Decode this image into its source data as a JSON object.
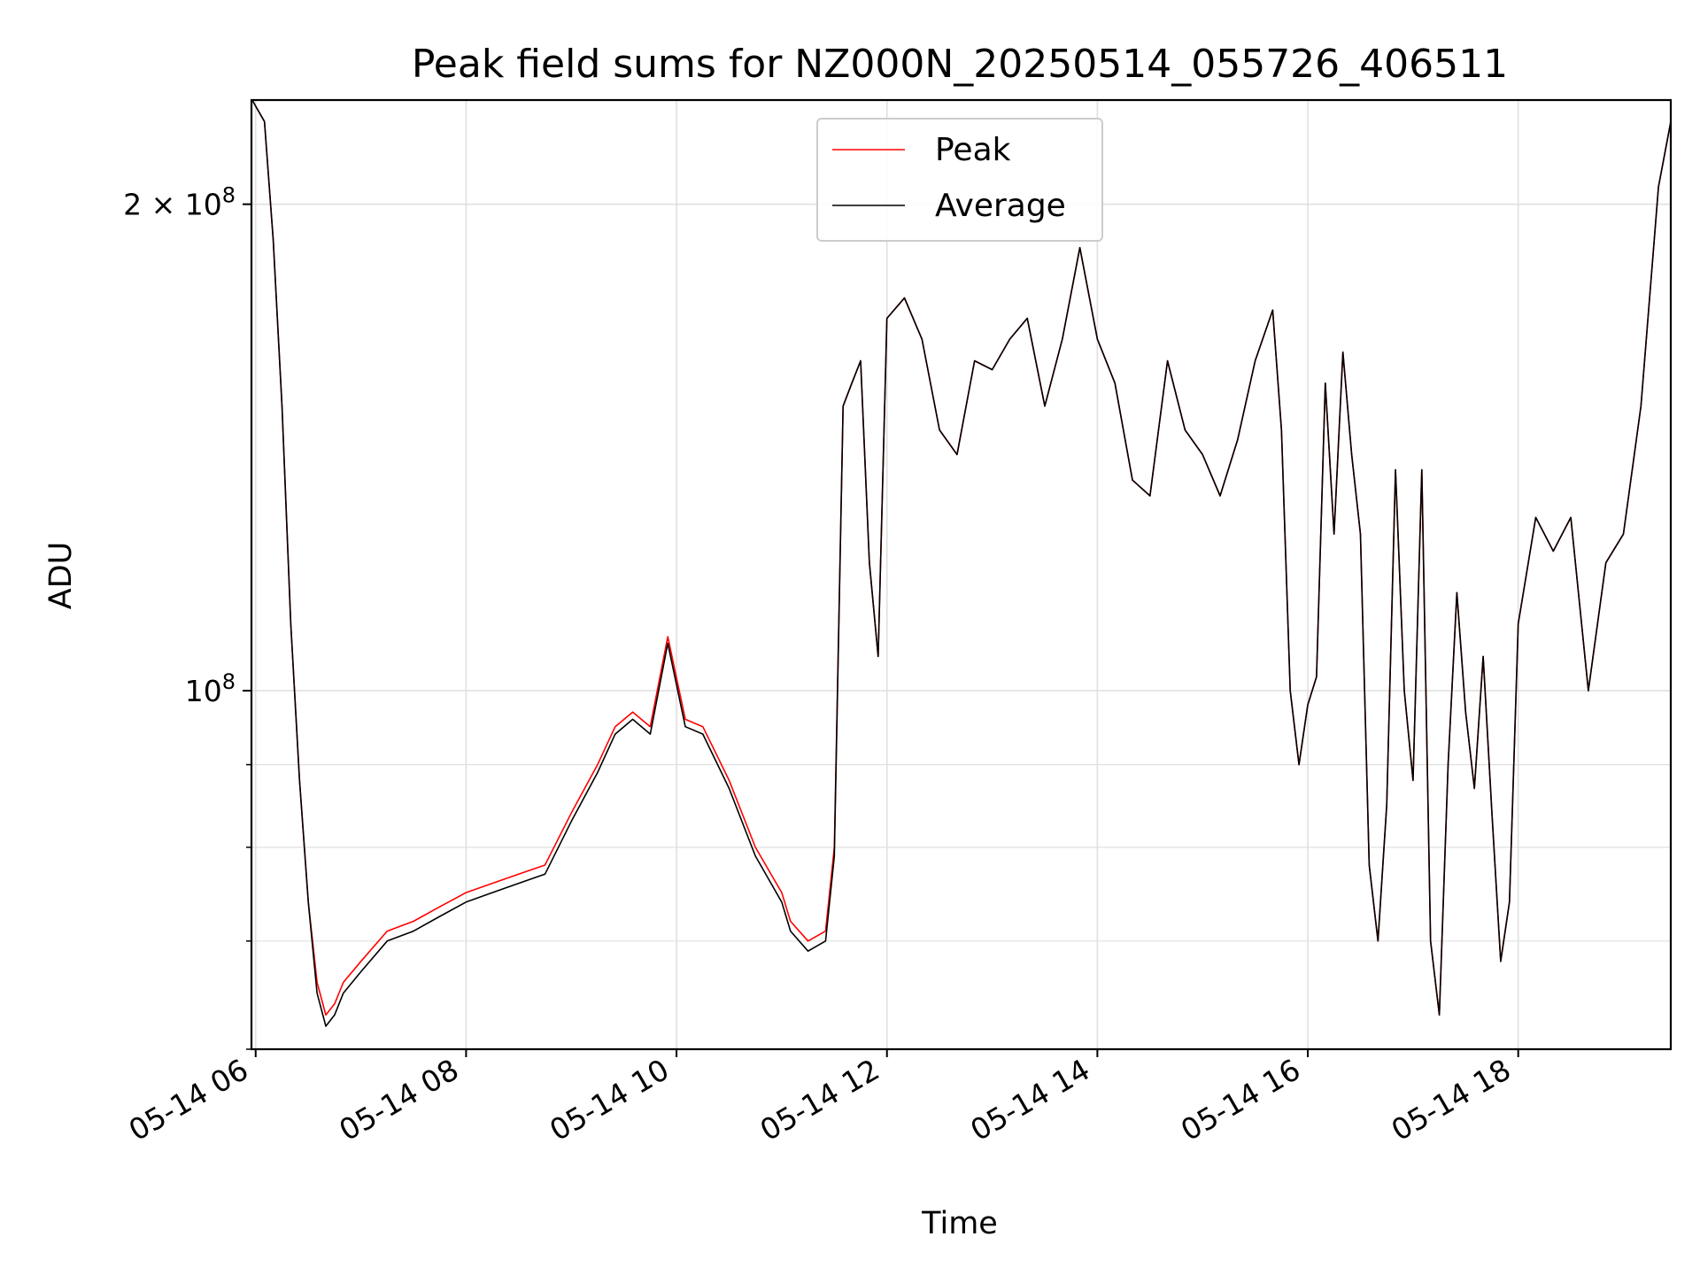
{
  "chart_data": {
    "type": "line",
    "title": "Peak field sums for NZ000N_20250514_055726_406511",
    "xlabel": "Time",
    "ylabel": "ADU",
    "yscale": "log",
    "xlim_hours": [
      5.96,
      19.45
    ],
    "ylim": [
      60000000,
      232000000
    ],
    "x_ticks": [
      "05-14 06",
      "05-14 08",
      "05-14 10",
      "05-14 12",
      "05-14 14",
      "05-14 16",
      "05-14 18"
    ],
    "y_tick_labels": [
      {
        "value": 200000000,
        "base": "2 × 10",
        "exp": "8"
      },
      {
        "value": 100000000,
        "base": "10",
        "exp": "8"
      }
    ],
    "grid": true,
    "legend_position": "upper center",
    "colors": {
      "peak": "#ff0000",
      "average": "#000000",
      "grid": "#e0e0e0"
    },
    "series": [
      {
        "name": "Peak",
        "x": [
          "05-14 05:58",
          "05-14 06:05",
          "05-14 06:10",
          "05-14 06:15",
          "05-14 06:20",
          "05-14 06:25",
          "05-14 06:30",
          "05-14 06:35",
          "05-14 06:40",
          "05-14 06:45",
          "05-14 06:50",
          "05-14 07:00",
          "05-14 07:15",
          "05-14 07:30",
          "05-14 07:45",
          "05-14 08:00",
          "05-14 08:15",
          "05-14 08:30",
          "05-14 08:45",
          "05-14 09:00",
          "05-14 09:15",
          "05-14 09:25",
          "05-14 09:35",
          "05-14 09:45",
          "05-14 09:55",
          "05-14 10:05",
          "05-14 10:15",
          "05-14 10:30",
          "05-14 10:45",
          "05-14 11:00",
          "05-14 11:05",
          "05-14 11:15",
          "05-14 11:25",
          "05-14 11:30",
          "05-14 11:35",
          "05-14 11:40",
          "05-14 11:45",
          "05-14 11:50",
          "05-14 11:55",
          "05-14 12:00",
          "05-14 12:10",
          "05-14 12:20",
          "05-14 12:30",
          "05-14 12:40",
          "05-14 12:50",
          "05-14 13:00",
          "05-14 13:10",
          "05-14 13:20",
          "05-14 13:30",
          "05-14 13:40",
          "05-14 13:50",
          "05-14 14:00",
          "05-14 14:10",
          "05-14 14:20",
          "05-14 14:30",
          "05-14 14:40",
          "05-14 14:50",
          "05-14 15:00",
          "05-14 15:10",
          "05-14 15:20",
          "05-14 15:30",
          "05-14 15:40",
          "05-14 15:45",
          "05-14 15:50",
          "05-14 15:55",
          "05-14 16:00",
          "05-14 16:05",
          "05-14 16:10",
          "05-14 16:15",
          "05-14 16:20",
          "05-14 16:25",
          "05-14 16:30",
          "05-14 16:35",
          "05-14 16:40",
          "05-14 16:45",
          "05-14 16:50",
          "05-14 16:55",
          "05-14 17:00",
          "05-14 17:05",
          "05-14 17:10",
          "05-14 17:15",
          "05-14 17:20",
          "05-14 17:25",
          "05-14 17:30",
          "05-14 17:35",
          "05-14 17:40",
          "05-14 17:45",
          "05-14 17:50",
          "05-14 17:55",
          "05-14 18:00",
          "05-14 18:10",
          "05-14 18:20",
          "05-14 18:30",
          "05-14 18:40",
          "05-14 18:50",
          "05-14 19:00",
          "05-14 19:10",
          "05-14 19:20",
          "05-14 19:27"
        ],
        "values": [
          232000000,
          225000000,
          190000000,
          150000000,
          110000000,
          88000000,
          74000000,
          66000000,
          63000000,
          64000000,
          66000000,
          68000000,
          71000000,
          72000000,
          73500000,
          75000000,
          76000000,
          77000000,
          78000000,
          84000000,
          90000000,
          95000000,
          97000000,
          95000000,
          108000000,
          96000000,
          95000000,
          88000000,
          80000000,
          75000000,
          72000000,
          70000000,
          71000000,
          80000000,
          150000000,
          155000000,
          160000000,
          120000000,
          105000000,
          170000000,
          175000000,
          165000000,
          145000000,
          140000000,
          160000000,
          158000000,
          165000000,
          170000000,
          150000000,
          165000000,
          188000000,
          165000000,
          155000000,
          135000000,
          132000000,
          160000000,
          145000000,
          140000000,
          132000000,
          143000000,
          160000000,
          172000000,
          145000000,
          100000000,
          90000000,
          98000000,
          102000000,
          155000000,
          125000000,
          162000000,
          140000000,
          125000000,
          78000000,
          70000000,
          85000000,
          137000000,
          100000000,
          88000000,
          137000000,
          70000000,
          63000000,
          90000000,
          115000000,
          97000000,
          87000000,
          105000000,
          84000000,
          68000000,
          74000000,
          110000000,
          128000000,
          122000000,
          128000000,
          100000000,
          120000000,
          125000000,
          150000000,
          205000000,
          225000000
        ]
      },
      {
        "name": "Average",
        "x": [
          "05-14 05:58",
          "05-14 06:05",
          "05-14 06:10",
          "05-14 06:15",
          "05-14 06:20",
          "05-14 06:25",
          "05-14 06:30",
          "05-14 06:35",
          "05-14 06:40",
          "05-14 06:45",
          "05-14 06:50",
          "05-14 07:00",
          "05-14 07:15",
          "05-14 07:30",
          "05-14 07:45",
          "05-14 08:00",
          "05-14 08:15",
          "05-14 08:30",
          "05-14 08:45",
          "05-14 09:00",
          "05-14 09:15",
          "05-14 09:25",
          "05-14 09:35",
          "05-14 09:45",
          "05-14 09:55",
          "05-14 10:05",
          "05-14 10:15",
          "05-14 10:30",
          "05-14 10:45",
          "05-14 11:00",
          "05-14 11:05",
          "05-14 11:15",
          "05-14 11:25",
          "05-14 11:30",
          "05-14 11:35",
          "05-14 11:40",
          "05-14 11:45",
          "05-14 11:50",
          "05-14 11:55",
          "05-14 12:00",
          "05-14 12:10",
          "05-14 12:20",
          "05-14 12:30",
          "05-14 12:40",
          "05-14 12:50",
          "05-14 13:00",
          "05-14 13:10",
          "05-14 13:20",
          "05-14 13:30",
          "05-14 13:40",
          "05-14 13:50",
          "05-14 14:00",
          "05-14 14:10",
          "05-14 14:20",
          "05-14 14:30",
          "05-14 14:40",
          "05-14 14:50",
          "05-14 15:00",
          "05-14 15:10",
          "05-14 15:20",
          "05-14 15:30",
          "05-14 15:40",
          "05-14 15:45",
          "05-14 15:50",
          "05-14 15:55",
          "05-14 16:00",
          "05-14 16:05",
          "05-14 16:10",
          "05-14 16:15",
          "05-14 16:20",
          "05-14 16:25",
          "05-14 16:30",
          "05-14 16:35",
          "05-14 16:40",
          "05-14 16:45",
          "05-14 16:50",
          "05-14 16:55",
          "05-14 17:00",
          "05-14 17:05",
          "05-14 17:10",
          "05-14 17:15",
          "05-14 17:20",
          "05-14 17:25",
          "05-14 17:30",
          "05-14 17:35",
          "05-14 17:40",
          "05-14 17:45",
          "05-14 17:50",
          "05-14 17:55",
          "05-14 18:00",
          "05-14 18:10",
          "05-14 18:20",
          "05-14 18:30",
          "05-14 18:40",
          "05-14 18:50",
          "05-14 19:00",
          "05-14 19:10",
          "05-14 19:20",
          "05-14 19:27"
        ],
        "values": [
          232000000,
          225000000,
          190000000,
          150000000,
          110000000,
          88000000,
          74000000,
          65000000,
          62000000,
          63000000,
          65000000,
          67000000,
          70000000,
          71000000,
          72500000,
          74000000,
          75000000,
          76000000,
          77000000,
          83000000,
          89000000,
          94000000,
          96000000,
          94000000,
          107000000,
          95000000,
          94000000,
          87000000,
          79000000,
          74000000,
          71000000,
          69000000,
          70000000,
          79000000,
          150000000,
          155000000,
          160000000,
          120000000,
          105000000,
          170000000,
          175000000,
          165000000,
          145000000,
          140000000,
          160000000,
          158000000,
          165000000,
          170000000,
          150000000,
          165000000,
          188000000,
          165000000,
          155000000,
          135000000,
          132000000,
          160000000,
          145000000,
          140000000,
          132000000,
          143000000,
          160000000,
          172000000,
          145000000,
          100000000,
          90000000,
          98000000,
          102000000,
          155000000,
          125000000,
          162000000,
          140000000,
          125000000,
          78000000,
          70000000,
          85000000,
          137000000,
          100000000,
          88000000,
          137000000,
          70000000,
          63000000,
          90000000,
          115000000,
          97000000,
          87000000,
          105000000,
          84000000,
          68000000,
          74000000,
          110000000,
          128000000,
          122000000,
          128000000,
          100000000,
          120000000,
          125000000,
          150000000,
          205000000,
          225000000
        ]
      }
    ]
  }
}
